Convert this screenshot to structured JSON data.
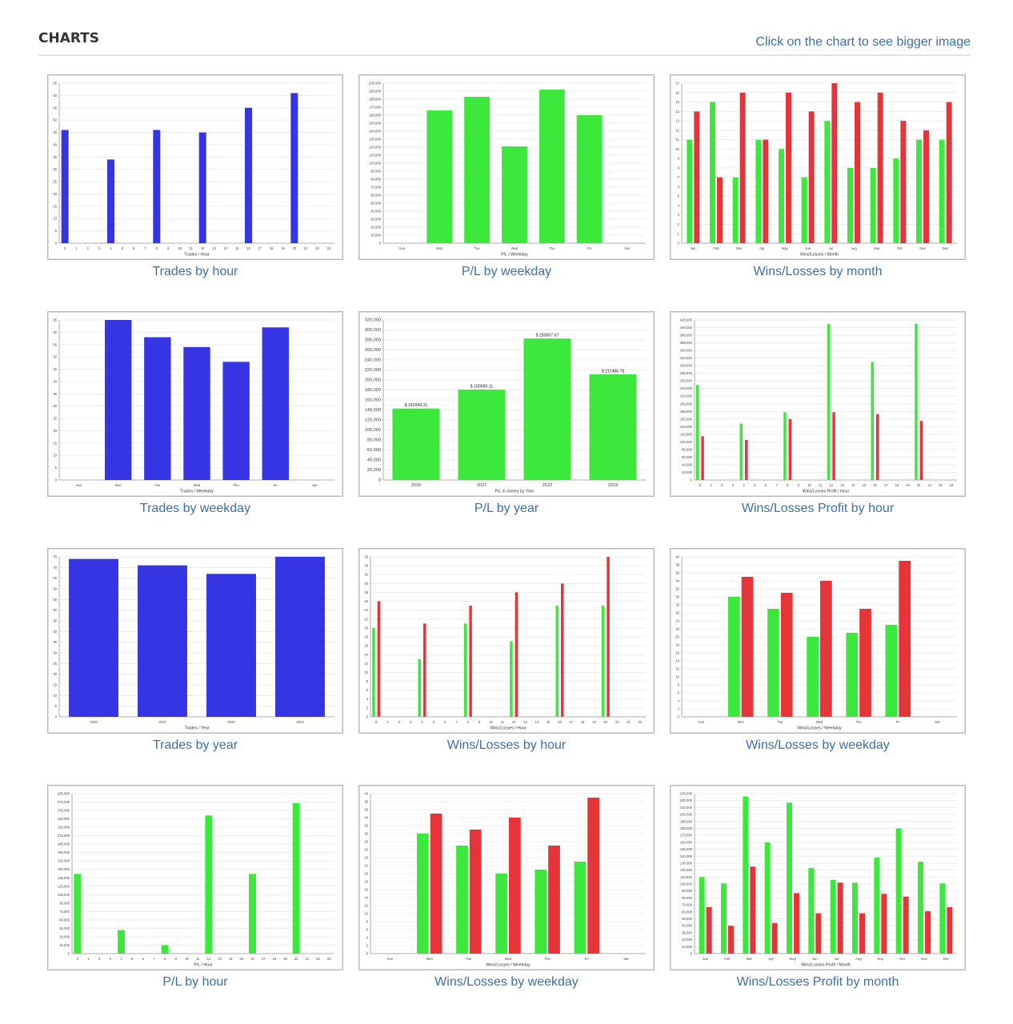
{
  "page": {
    "title": "CHARTS",
    "hint": "Click on the chart to see bigger image"
  },
  "colors": {
    "blue": "#3535e3",
    "green": "#3de83d",
    "red": "#e63538",
    "link": "#3c6fa5"
  },
  "charts": [
    {
      "caption": "Trades by hour",
      "chart_data": {
        "type": "bar",
        "xlabel": "Trades / Hour",
        "categories": [
          "0",
          "1",
          "2",
          "3",
          "4",
          "5",
          "6",
          "7",
          "8",
          "9",
          "10",
          "11",
          "12",
          "13",
          "14",
          "15",
          "16",
          "17",
          "18",
          "19",
          "20",
          "21",
          "22",
          "23"
        ],
        "ylim": [
          0,
          65
        ],
        "yticks": [
          0,
          5,
          10,
          15,
          20,
          25,
          30,
          35,
          40,
          45,
          50,
          55,
          60,
          65
        ],
        "series": [
          {
            "color": "blue",
            "values": [
              46,
              0,
              0,
              0,
              34,
              0,
              0,
              0,
              46,
              0,
              0,
              0,
              45,
              0,
              0,
              0,
              55,
              0,
              0,
              0,
              61,
              0,
              0,
              0
            ]
          }
        ]
      }
    },
    {
      "caption": "P/L by weekday",
      "chart_data": {
        "type": "bar",
        "xlabel": "P/L / Weekday",
        "categories": [
          "Sun",
          "Mon",
          "Tue",
          "Wed",
          "Thu",
          "Fri",
          "Sat"
        ],
        "ylim": [
          0,
          200000
        ],
        "yticks": [
          0,
          10000,
          20000,
          30000,
          40000,
          50000,
          60000,
          70000,
          80000,
          90000,
          100000,
          110000,
          120000,
          130000,
          140000,
          150000,
          160000,
          170000,
          180000,
          190000,
          200000
        ],
        "series": [
          {
            "color": "green",
            "values": [
              0,
              166000,
              183000,
              121000,
              192000,
              160000,
              0
            ]
          }
        ]
      }
    },
    {
      "caption": "Wins/Losses by month",
      "chart_data": {
        "type": "bar",
        "xlabel": "Wins/Losses / Month",
        "categories": [
          "Jan",
          "Feb",
          "Mar",
          "Apr",
          "May",
          "Jun",
          "Jul",
          "Aug",
          "Sep",
          "Oct",
          "Nov",
          "Dec"
        ],
        "ylim": [
          0,
          17
        ],
        "yticks": [
          0,
          1,
          2,
          3,
          4,
          5,
          6,
          7,
          8,
          9,
          10,
          11,
          12,
          13,
          14,
          15,
          16,
          17
        ],
        "series": [
          {
            "color": "green",
            "values": [
              11,
              15,
              7,
              11,
              10,
              7,
              13,
              8,
              8,
              9,
              11,
              11
            ]
          },
          {
            "color": "red",
            "values": [
              14,
              7,
              16,
              11,
              16,
              14,
              17,
              15,
              16,
              13,
              12,
              15
            ]
          }
        ]
      }
    },
    {
      "caption": "Trades by weekday",
      "chart_data": {
        "type": "bar",
        "xlabel": "Trades / Weekday",
        "categories": [
          "Sun",
          "Mon",
          "Tue",
          "Wed",
          "Thu",
          "Fri",
          "Sat"
        ],
        "ylim": [
          0,
          65
        ],
        "yticks": [
          0,
          5,
          10,
          15,
          20,
          25,
          30,
          35,
          40,
          45,
          50,
          55,
          60,
          65
        ],
        "series": [
          {
            "color": "blue",
            "values": [
              0,
              65,
              58,
              54,
              48,
              62,
              0
            ]
          }
        ]
      }
    },
    {
      "caption": "P/L by year",
      "chart_data": {
        "type": "bar",
        "xlabel": "P/L in money by Year",
        "categories": [
          "2020",
          "2021",
          "2022",
          "2023"
        ],
        "ylim": [
          0,
          320000
        ],
        "yticks": [
          0,
          20000,
          40000,
          60000,
          80000,
          100000,
          120000,
          140000,
          160000,
          180000,
          200000,
          220000,
          240000,
          260000,
          280000,
          300000,
          320000
        ],
        "value_labels": [
          "$ 142949.31",
          "$ 180990.11",
          "$ 283007.67",
          "$ 211486.78"
        ],
        "series": [
          {
            "color": "green",
            "values": [
              142949.31,
              180990.11,
              283007.67,
              211486.78
            ]
          }
        ]
      }
    },
    {
      "caption": "Wins/Losses Profit by hour",
      "chart_data": {
        "type": "bar",
        "xlabel": "Wins/Losses Profit / Hour",
        "categories": [
          "0",
          "1",
          "2",
          "3",
          "4",
          "5",
          "6",
          "7",
          "8",
          "9",
          "10",
          "11",
          "12",
          "13",
          "14",
          "15",
          "16",
          "17",
          "18",
          "19",
          "20",
          "21",
          "22",
          "23"
        ],
        "ylim": [
          0,
          420000
        ],
        "yticks": [
          0,
          20000,
          40000,
          60000,
          80000,
          100000,
          120000,
          140000,
          160000,
          180000,
          200000,
          220000,
          240000,
          260000,
          280000,
          300000,
          320000,
          340000,
          360000,
          380000,
          400000,
          420000
        ],
        "series": [
          {
            "color": "green",
            "values": [
              250000,
              0,
              0,
              0,
              148000,
              0,
              0,
              0,
              178000,
              0,
              0,
              0,
              410000,
              0,
              0,
              0,
              310000,
              0,
              0,
              0,
              410000,
              0,
              0,
              0
            ]
          },
          {
            "color": "red",
            "values": [
              115000,
              0,
              0,
              0,
              105000,
              0,
              0,
              0,
              160000,
              0,
              0,
              0,
              178000,
              0,
              0,
              0,
              173000,
              0,
              0,
              0,
              155000,
              0,
              0,
              0
            ]
          }
        ]
      }
    },
    {
      "caption": "Trades by year",
      "chart_data": {
        "type": "bar",
        "xlabel": "Trades / Year",
        "categories": [
          "2020",
          "2021",
          "2022",
          "2023"
        ],
        "ylim": [
          0,
          75
        ],
        "yticks": [
          0,
          5,
          10,
          15,
          20,
          25,
          30,
          35,
          40,
          45,
          50,
          55,
          60,
          65,
          70,
          75
        ],
        "series": [
          {
            "color": "blue",
            "values": [
              74,
              71,
              67,
              75
            ]
          }
        ]
      }
    },
    {
      "caption": "Wins/Losses by hour",
      "chart_data": {
        "type": "bar",
        "xlabel": "Wins/Losses / Hour",
        "categories": [
          "0",
          "1",
          "2",
          "3",
          "4",
          "5",
          "6",
          "7",
          "8",
          "9",
          "10",
          "11",
          "12",
          "13",
          "14",
          "15",
          "16",
          "17",
          "18",
          "19",
          "20",
          "21",
          "22",
          "23"
        ],
        "ylim": [
          0,
          36
        ],
        "yticks": [
          0,
          2,
          4,
          6,
          8,
          10,
          12,
          14,
          16,
          18,
          20,
          22,
          24,
          26,
          28,
          30,
          32,
          34,
          36
        ],
        "series": [
          {
            "color": "green",
            "values": [
              20,
              0,
              0,
              0,
              13,
              0,
              0,
              0,
              21,
              0,
              0,
              0,
              17,
              0,
              0,
              0,
              25,
              0,
              0,
              0,
              25,
              0,
              0,
              0
            ]
          },
          {
            "color": "red",
            "values": [
              26,
              0,
              0,
              0,
              21,
              0,
              0,
              0,
              25,
              0,
              0,
              0,
              28,
              0,
              0,
              0,
              30,
              0,
              0,
              0,
              36,
              0,
              0,
              0
            ]
          }
        ]
      }
    },
    {
      "caption": "Wins/Losses by weekday",
      "chart_data": {
        "type": "bar",
        "xlabel": "Wins/Losses / Weekday",
        "categories": [
          "Sun",
          "Mon",
          "Tue",
          "Wed",
          "Thu",
          "Fri",
          "Sat"
        ],
        "ylim": [
          0,
          40
        ],
        "yticks": [
          0,
          2,
          4,
          6,
          8,
          10,
          12,
          14,
          16,
          18,
          20,
          22,
          24,
          26,
          28,
          30,
          32,
          34,
          36,
          38,
          40
        ],
        "series": [
          {
            "color": "green",
            "values": [
              0,
              30,
              27,
              20,
              21,
              23,
              0
            ]
          },
          {
            "color": "red",
            "values": [
              0,
              35,
              31,
              34,
              27,
              39,
              0
            ]
          }
        ]
      }
    },
    {
      "caption": "P/L by hour",
      "chart_data": {
        "type": "bar",
        "xlabel": "P/L / Hour",
        "categories": [
          "0",
          "1",
          "2",
          "3",
          "4",
          "5",
          "6",
          "7",
          "8",
          "9",
          "10",
          "11",
          "12",
          "13",
          "14",
          "15",
          "16",
          "17",
          "18",
          "19",
          "20",
          "21",
          "22",
          "23"
        ],
        "ylim": [
          0,
          285000
        ],
        "yticks": [
          0,
          15000,
          30000,
          45000,
          60000,
          75000,
          90000,
          105000,
          120000,
          135000,
          150000,
          165000,
          180000,
          195000,
          210000,
          225000,
          240000,
          255000,
          270000,
          285000
        ],
        "series": [
          {
            "color": "green",
            "values": [
              142000,
              0,
              0,
              0,
              42000,
              0,
              0,
              0,
              15000,
              0,
              0,
              0,
              246000,
              0,
              0,
              0,
              142000,
              0,
              0,
              0,
              268000,
              0,
              0,
              0
            ]
          }
        ]
      }
    },
    {
      "caption": "Wins/Losses by weekday",
      "chart_data": {
        "type": "bar",
        "xlabel": "Wins/Losses / Weekday",
        "categories": [
          "Sun",
          "Mon",
          "Tue",
          "Wed",
          "Thu",
          "Fri",
          "Sat"
        ],
        "ylim": [
          0,
          40
        ],
        "yticks": [
          0,
          2,
          4,
          6,
          8,
          10,
          12,
          14,
          16,
          18,
          20,
          22,
          24,
          26,
          28,
          30,
          32,
          34,
          36,
          38,
          40
        ],
        "series": [
          {
            "color": "green",
            "values": [
              0,
              30,
              27,
              20,
              21,
              23,
              0
            ]
          },
          {
            "color": "red",
            "values": [
              0,
              35,
              31,
              34,
              27,
              39,
              0
            ]
          }
        ]
      }
    },
    {
      "caption": "Wins/Losses Profit by month",
      "chart_data": {
        "type": "bar",
        "xlabel": "Wins/Losses Profit / Month",
        "categories": [
          "Jan",
          "Feb",
          "Mar",
          "Apr",
          "May",
          "Jun",
          "Jul",
          "Aug",
          "Sep",
          "Oct",
          "Nov",
          "Dec"
        ],
        "ylim": [
          0,
          230000
        ],
        "yticks": [
          0,
          10000,
          20000,
          30000,
          40000,
          50000,
          60000,
          70000,
          80000,
          90000,
          100000,
          110000,
          120000,
          130000,
          140000,
          150000,
          160000,
          170000,
          180000,
          190000,
          200000,
          210000,
          220000,
          230000
        ],
        "series": [
          {
            "color": "green",
            "values": [
              110000,
              101000,
              226000,
              160000,
              217000,
              123000,
              106000,
              102000,
              138000,
              180000,
              132000,
              101000
            ]
          },
          {
            "color": "red",
            "values": [
              67000,
              40000,
              125000,
              44000,
              87000,
              58000,
              102000,
              58000,
              86000,
              82000,
              61000,
              67000
            ]
          }
        ]
      }
    }
  ]
}
